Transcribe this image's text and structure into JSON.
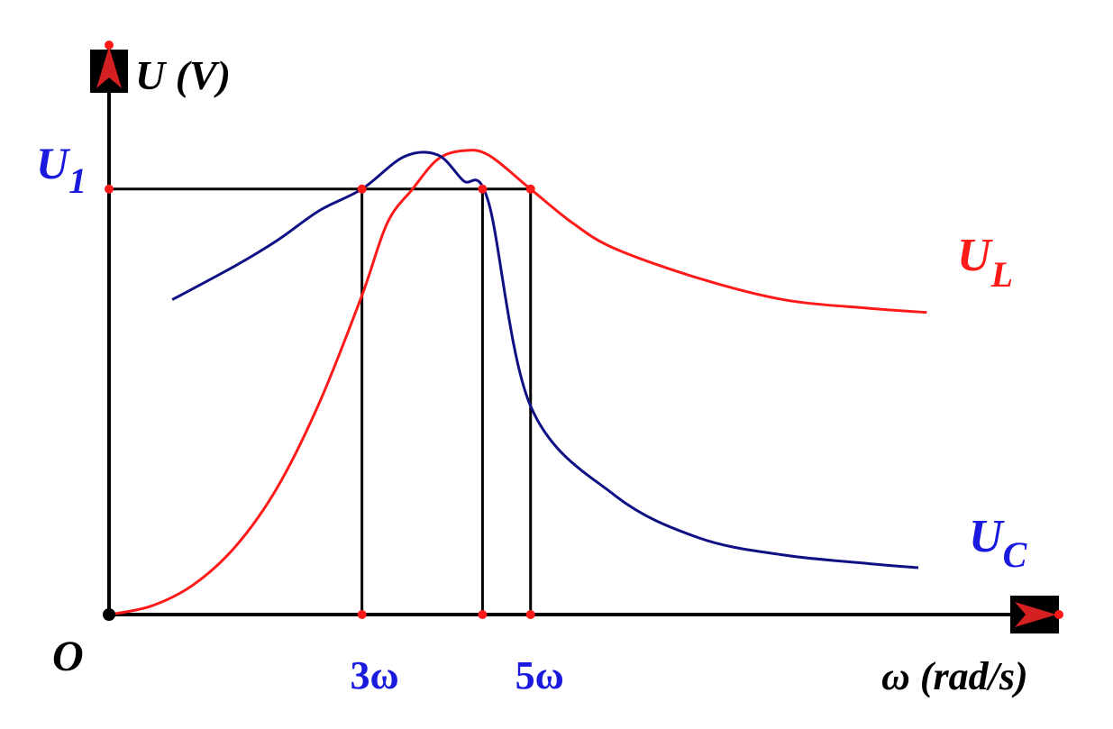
{
  "chart_data": {
    "type": "line",
    "ylabel": "U (V)",
    "xlabel": "ω (rad/s)",
    "origin_label": "O",
    "y_ticks": [
      {
        "label_main": "U",
        "label_sub": "1",
        "value": 5.0
      }
    ],
    "x_ticks": [
      {
        "label": "3ω",
        "value": 3
      },
      {
        "label": "",
        "value": 4.43
      },
      {
        "label": "5ω",
        "value": 5
      }
    ],
    "xlim": [
      0,
      11
    ],
    "ylim": [
      0,
      6.3
    ],
    "grid": false,
    "series": [
      {
        "name_main": "U",
        "name_sub": "L",
        "color": "#ff1a1a",
        "points": [
          [
            0,
            0
          ],
          [
            0.5,
            0.1
          ],
          [
            1,
            0.35
          ],
          [
            1.5,
            0.8
          ],
          [
            2,
            1.5
          ],
          [
            2.5,
            2.5
          ],
          [
            3,
            3.75
          ],
          [
            3.3,
            4.6
          ],
          [
            3.6,
            5.0
          ],
          [
            3.9,
            5.35
          ],
          [
            4.2,
            5.45
          ],
          [
            4.5,
            5.4
          ],
          [
            5,
            5.0
          ],
          [
            5.5,
            4.6
          ],
          [
            6,
            4.3
          ],
          [
            7,
            3.95
          ],
          [
            8,
            3.7
          ],
          [
            9,
            3.6
          ],
          [
            9.7,
            3.55
          ]
        ]
      },
      {
        "name_main": "U",
        "name_sub": "C",
        "color": "#101085",
        "points": [
          [
            0.75,
            3.7
          ],
          [
            1.5,
            4.1
          ],
          [
            2,
            4.4
          ],
          [
            2.5,
            4.75
          ],
          [
            3,
            5.0
          ],
          [
            3.5,
            5.38
          ],
          [
            3.9,
            5.4
          ],
          [
            4.2,
            5.1
          ],
          [
            4.5,
            4.85
          ],
          [
            5,
            2.45
          ],
          [
            6,
            1.4
          ],
          [
            7,
            0.9
          ],
          [
            8,
            0.7
          ],
          [
            9,
            0.6
          ],
          [
            9.6,
            0.55
          ]
        ]
      }
    ]
  }
}
